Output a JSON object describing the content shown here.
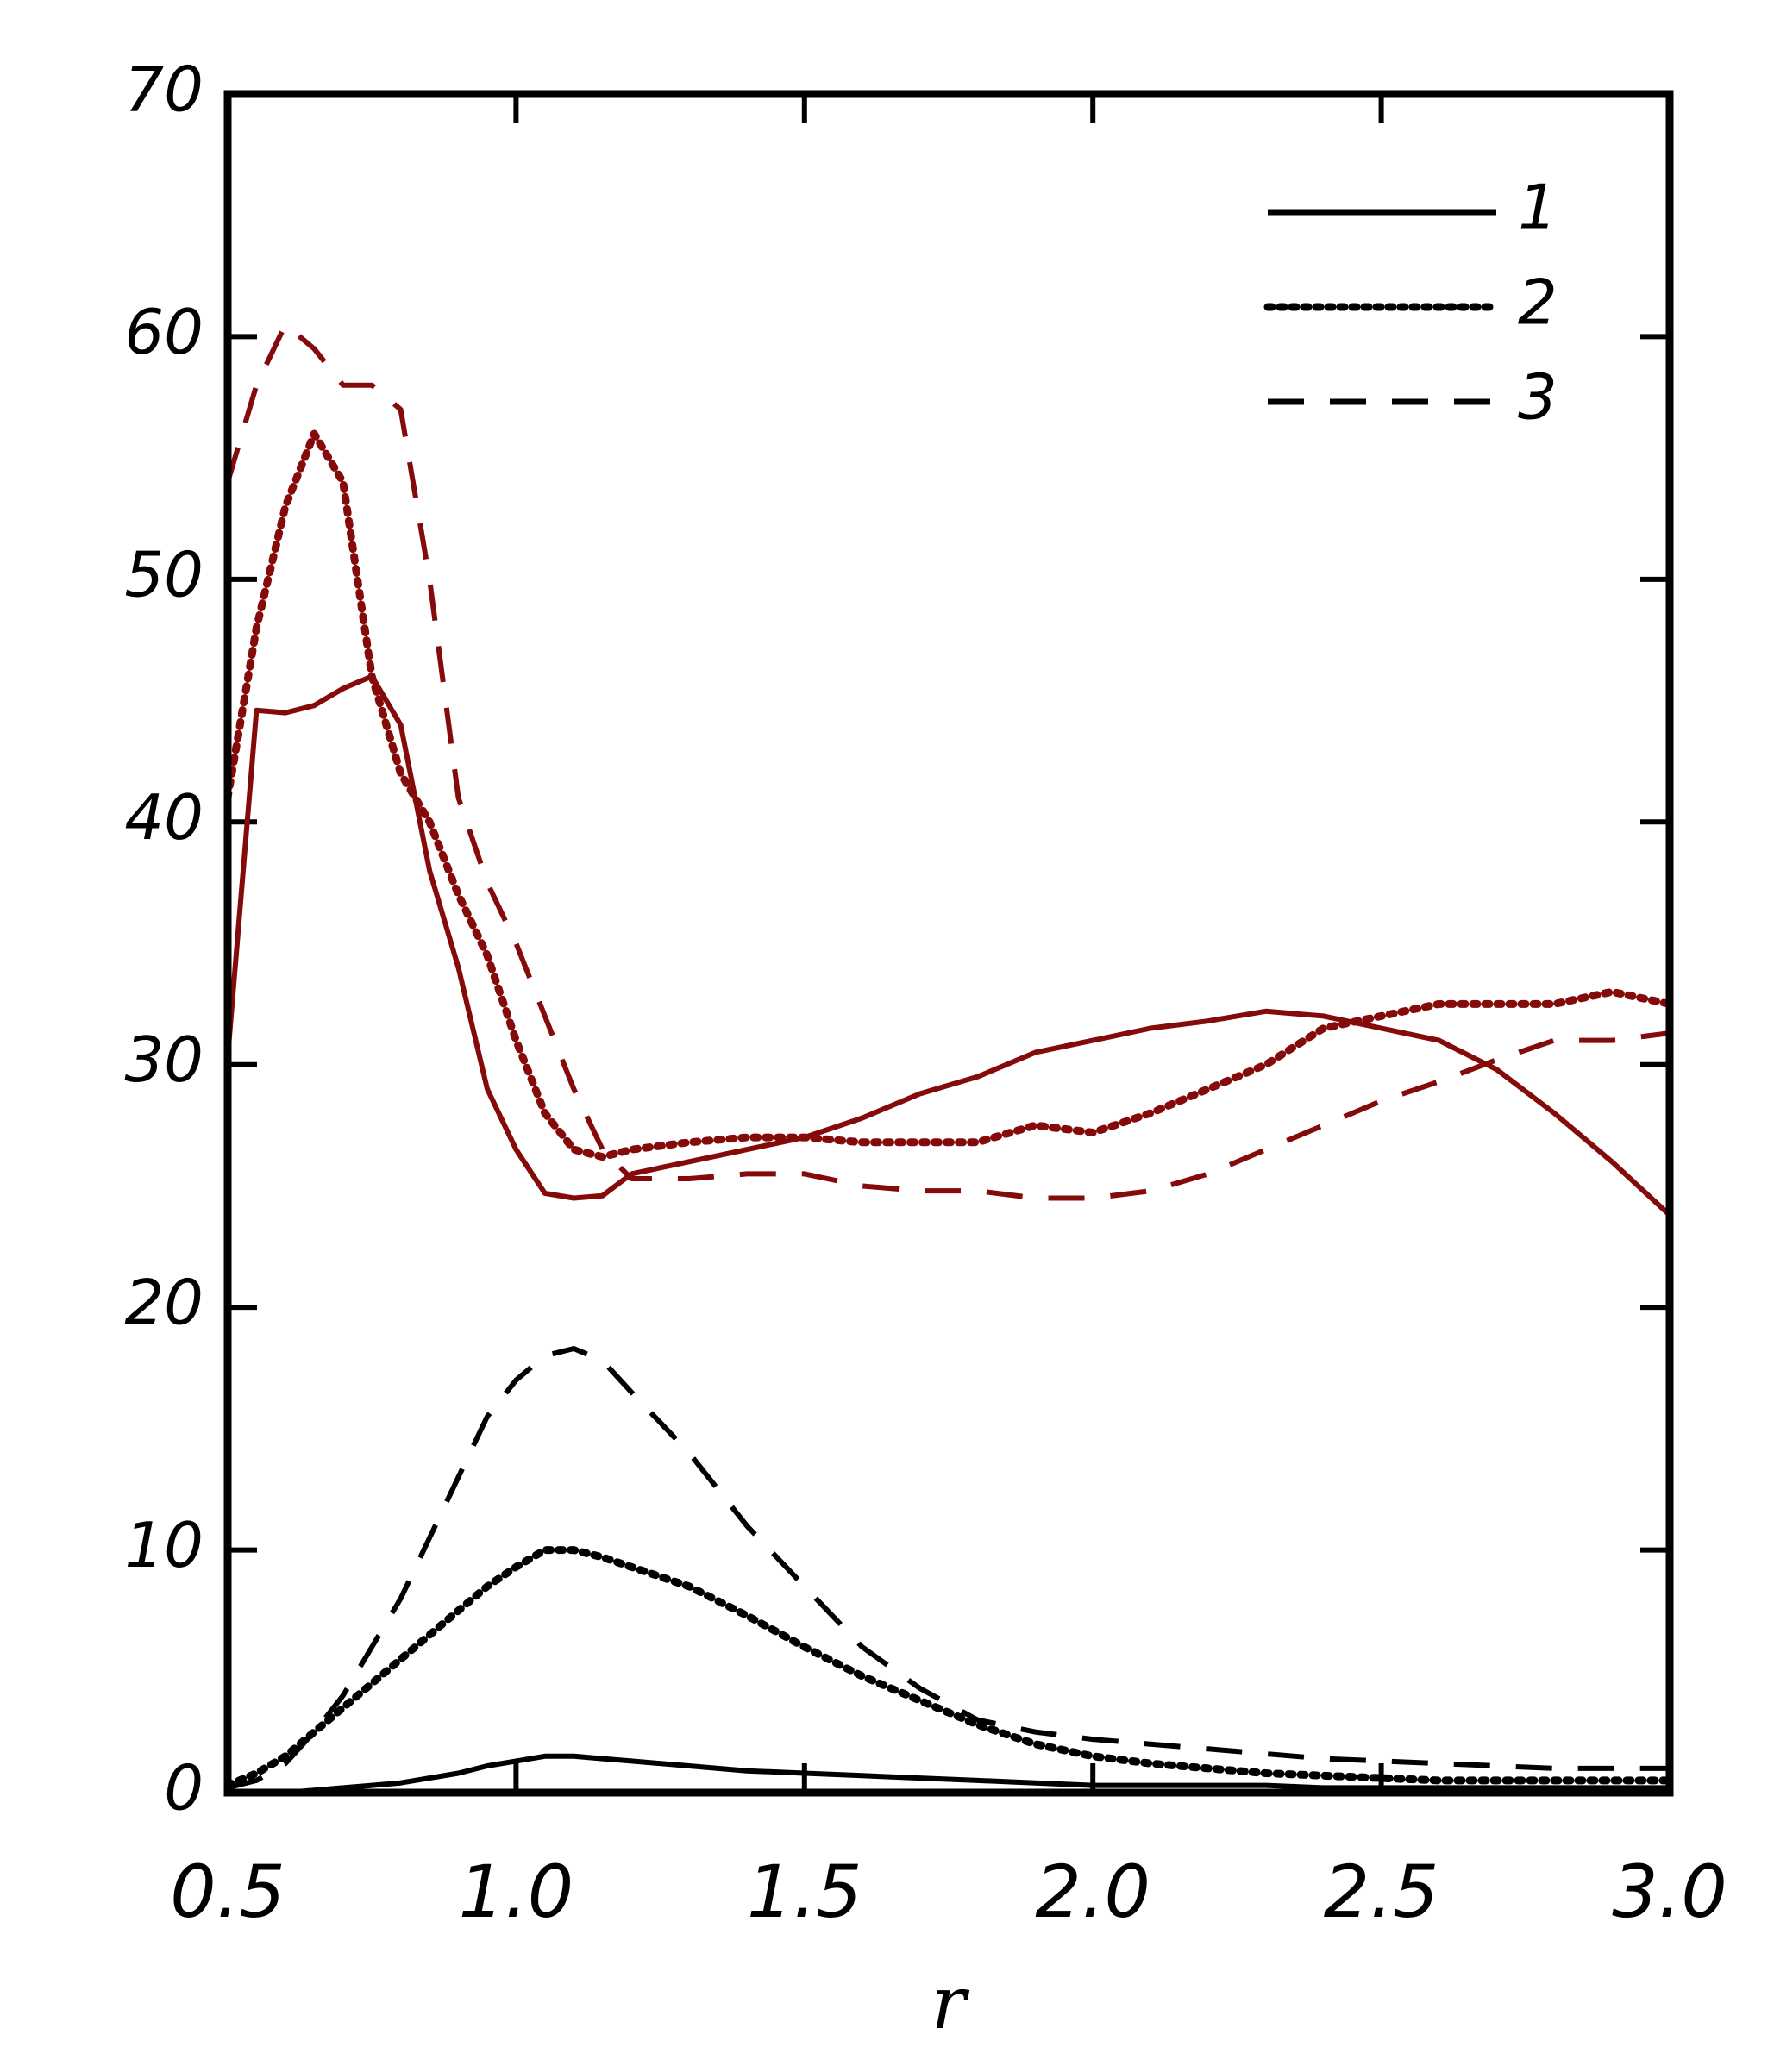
{
  "chart_data": {
    "type": "line",
    "xlabel": "r",
    "x": [
      0.5,
      0.55,
      0.6,
      0.65,
      0.7,
      0.75,
      0.8,
      0.85,
      0.9,
      0.95,
      1.0,
      1.05,
      1.1,
      1.15,
      1.2,
      1.3,
      1.4,
      1.5,
      1.6,
      1.7,
      1.8,
      1.9,
      2.0,
      2.1,
      2.2,
      2.3,
      2.4,
      2.5,
      2.6,
      2.7,
      2.8,
      2.9,
      3.0
    ],
    "xlim": [
      0.5,
      3.0
    ],
    "xticks": [
      0.5,
      {
        "value": 1,
        "label": "1.0"
      },
      1.5,
      {
        "value": 2,
        "label": "2.0"
      },
      2.5,
      {
        "value": 3,
        "label": "3.0"
      }
    ],
    "ylim": [
      0,
      70
    ],
    "yticks": [
      0,
      10,
      20,
      30,
      40,
      50,
      60,
      70
    ],
    "legend_position": "upper right",
    "legend": [
      {
        "label": "1",
        "style": "solid"
      },
      {
        "label": "2",
        "style": "dotted"
      },
      {
        "label": "3",
        "style": "dashed"
      }
    ],
    "legend_color": "#000000",
    "series": [
      {
        "color": "#850a0a",
        "style": "solid",
        "values": [
          30.3,
          44.6,
          44.5,
          44.8,
          45.5,
          46,
          44,
          38,
          34,
          29,
          26.5,
          24.7,
          24.5,
          24.6,
          25.5,
          26,
          26.5,
          27,
          27.8,
          28.8,
          29.5,
          30.5,
          31,
          31.5,
          31.8,
          32.2,
          32,
          31.5,
          31,
          29.8,
          28,
          26,
          23.8
        ]
      },
      {
        "color": "#850a0a",
        "style": "dotted",
        "values": [
          41,
          48,
          53,
          56,
          54,
          46,
          42,
          40,
          37,
          34.5,
          31,
          28,
          26.5,
          26.2,
          26.5,
          26.8,
          27,
          27,
          26.8,
          26.8,
          26.8,
          27.5,
          27.2,
          28,
          29,
          30,
          31.5,
          32,
          32.5,
          32.5,
          32.5,
          33,
          32.5
        ]
      },
      {
        "color": "#850a0a",
        "style": "dashed",
        "values": [
          54,
          58,
          60.5,
          59.5,
          58,
          58,
          57,
          50,
          41,
          37.5,
          35,
          32,
          29,
          26.5,
          25.3,
          25.3,
          25.5,
          25.5,
          25,
          24.8,
          24.8,
          24.5,
          24.5,
          24.8,
          25.5,
          26.5,
          27.5,
          28.5,
          29.3,
          30.2,
          31,
          31,
          31.3
        ]
      },
      {
        "color": "#000000",
        "style": "solid",
        "values": [
          0,
          0,
          0,
          0.1,
          0.2,
          0.3,
          0.4,
          0.6,
          0.8,
          1.1,
          1.3,
          1.5,
          1.5,
          1.4,
          1.3,
          1.1,
          0.9,
          0.8,
          0.7,
          0.6,
          0.5,
          0.4,
          0.3,
          0.3,
          0.3,
          0.3,
          0.2,
          0.2,
          0.2,
          0.2,
          0.2,
          0.2,
          0.2
        ]
      },
      {
        "color": "#000000",
        "style": "dotted",
        "values": [
          0.3,
          0.8,
          1.5,
          2.5,
          3.5,
          4.5,
          5.5,
          6.5,
          7.5,
          8.5,
          9.3,
          10,
          10,
          9.7,
          9.3,
          8.5,
          7.3,
          6,
          4.8,
          3.8,
          2.8,
          2,
          1.5,
          1.2,
          1,
          0.8,
          0.7,
          0.6,
          0.5,
          0.5,
          0.5,
          0.5,
          0.5
        ]
      },
      {
        "color": "#000000",
        "style": "dashed",
        "values": [
          0.2,
          0.5,
          1.2,
          2.5,
          4,
          6,
          8,
          10.5,
          13,
          15.5,
          17,
          18,
          18.3,
          17.8,
          16.5,
          14,
          11,
          8.5,
          6,
          4.3,
          3,
          2.5,
          2.2,
          2,
          1.8,
          1.6,
          1.4,
          1.3,
          1.2,
          1.1,
          1,
          1,
          1
        ]
      }
    ]
  }
}
